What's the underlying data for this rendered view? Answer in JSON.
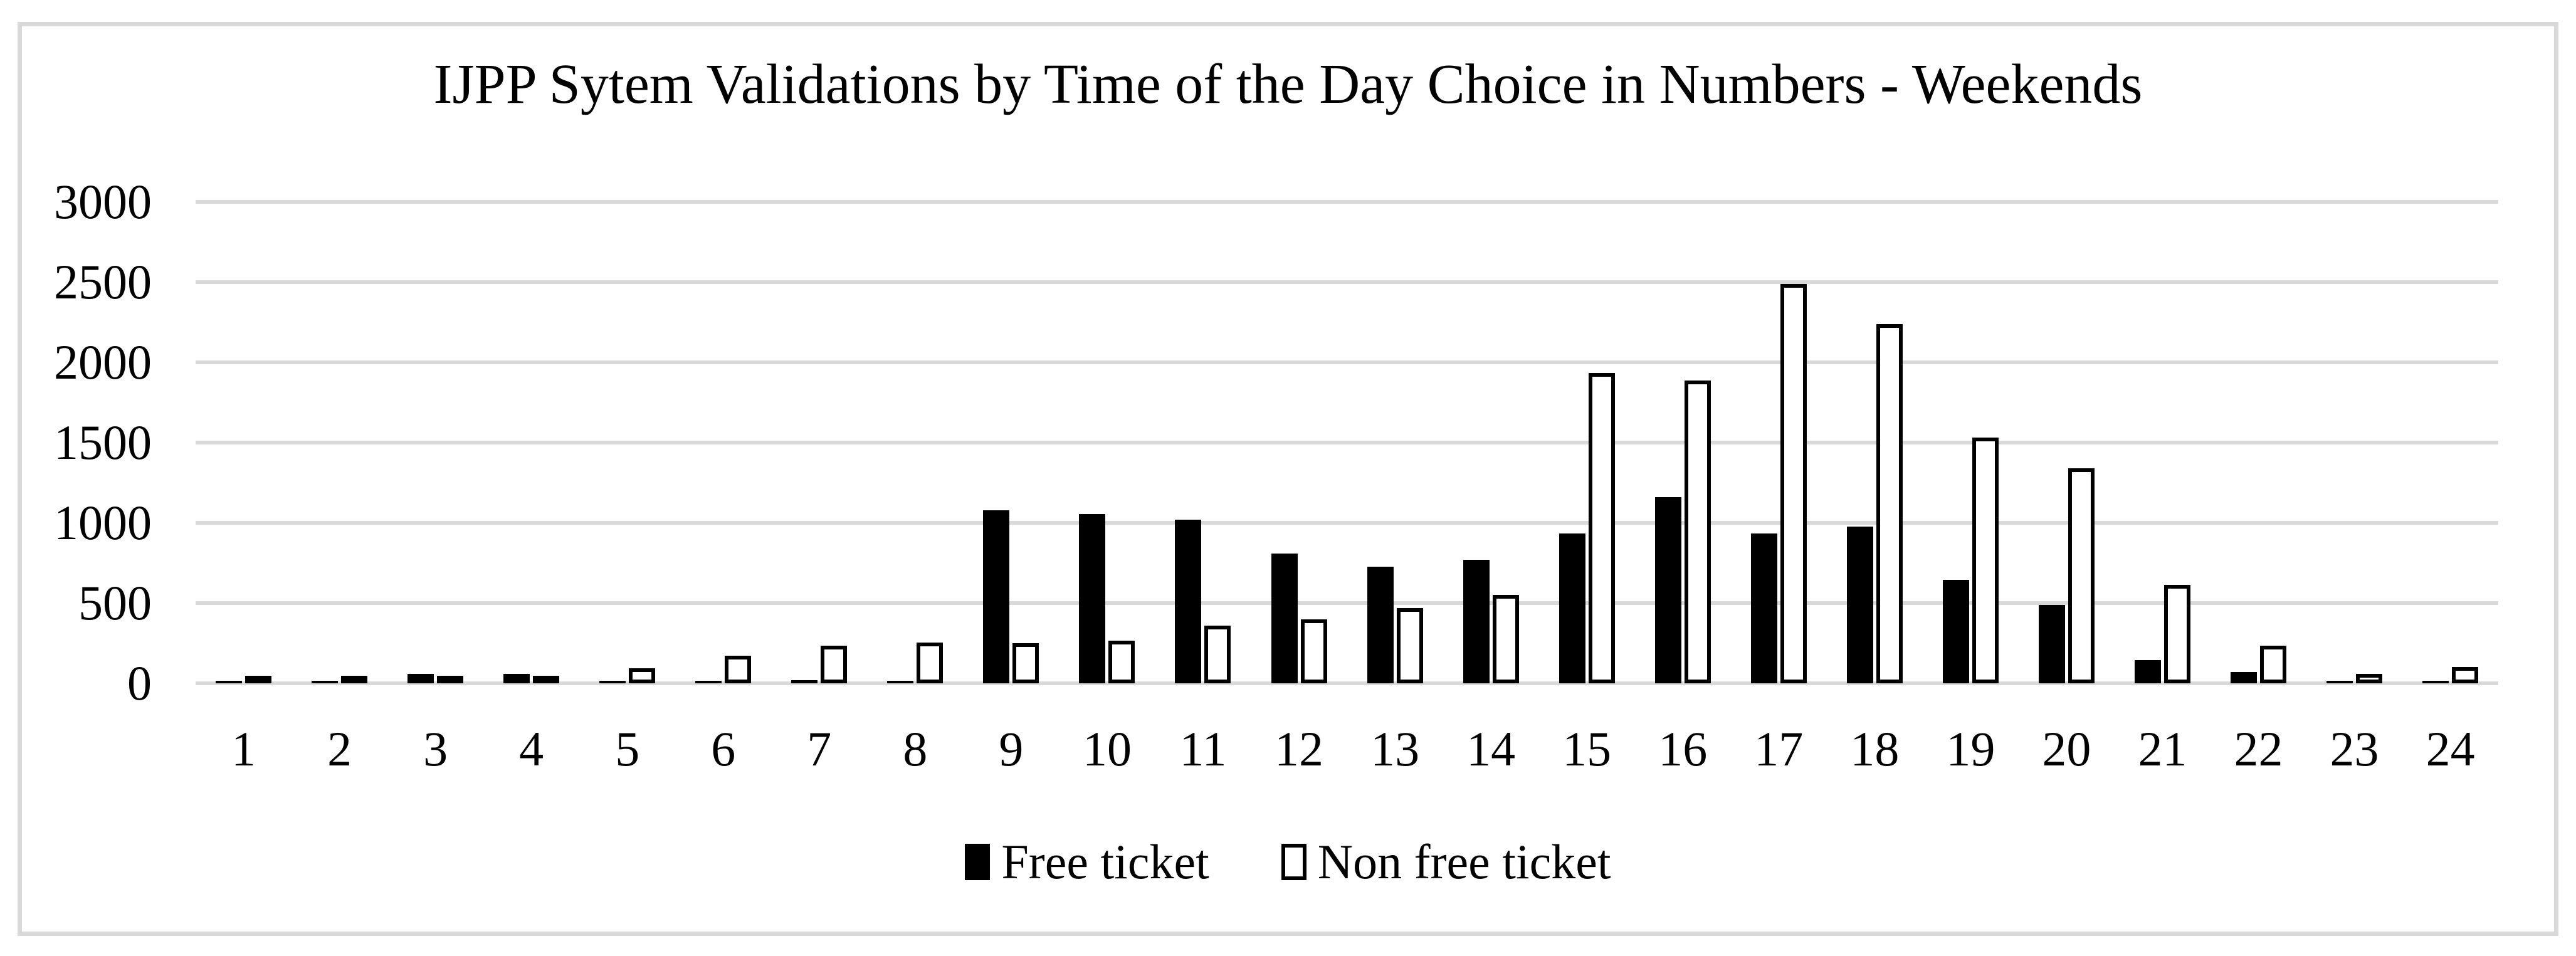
{
  "chart_data": {
    "type": "bar",
    "title": "IJPP Sytem Validations by Time of the Day Choice in Numbers - Weekends",
    "categories": [
      "1",
      "2",
      "3",
      "4",
      "5",
      "6",
      "7",
      "8",
      "9",
      "10",
      "11",
      "12",
      "13",
      "14",
      "15",
      "16",
      "17",
      "18",
      "19",
      "20",
      "21",
      "22",
      "23",
      "24"
    ],
    "series": [
      {
        "name": "Free ticket",
        "style": "solid-black",
        "values": [
          10,
          8,
          60,
          60,
          12,
          12,
          18,
          12,
          1080,
          1055,
          1020,
          810,
          725,
          770,
          935,
          1160,
          935,
          975,
          645,
          490,
          145,
          70,
          15,
          15
        ]
      },
      {
        "name": "Non free ticket",
        "style": "white-black-outline",
        "values": [
          8,
          5,
          10,
          35,
          95,
          170,
          235,
          255,
          250,
          265,
          360,
          400,
          470,
          550,
          1935,
          1885,
          2490,
          2240,
          1530,
          1340,
          615,
          235,
          60,
          100
        ]
      }
    ],
    "xlabel": "",
    "ylabel": "",
    "ylim": [
      0,
      3000
    ],
    "yticks": [
      0,
      500,
      1000,
      1500,
      2000,
      2500,
      3000
    ],
    "grid": true,
    "legend_position": "bottom",
    "colors": {
      "bar_fill": "#000000",
      "bar_open_fill": "#ffffff",
      "bar_outline": "#000000",
      "gridline": "#d9d9d9",
      "frame_border": "#d9d9d9",
      "text": "#000000",
      "background": "#ffffff"
    }
  }
}
